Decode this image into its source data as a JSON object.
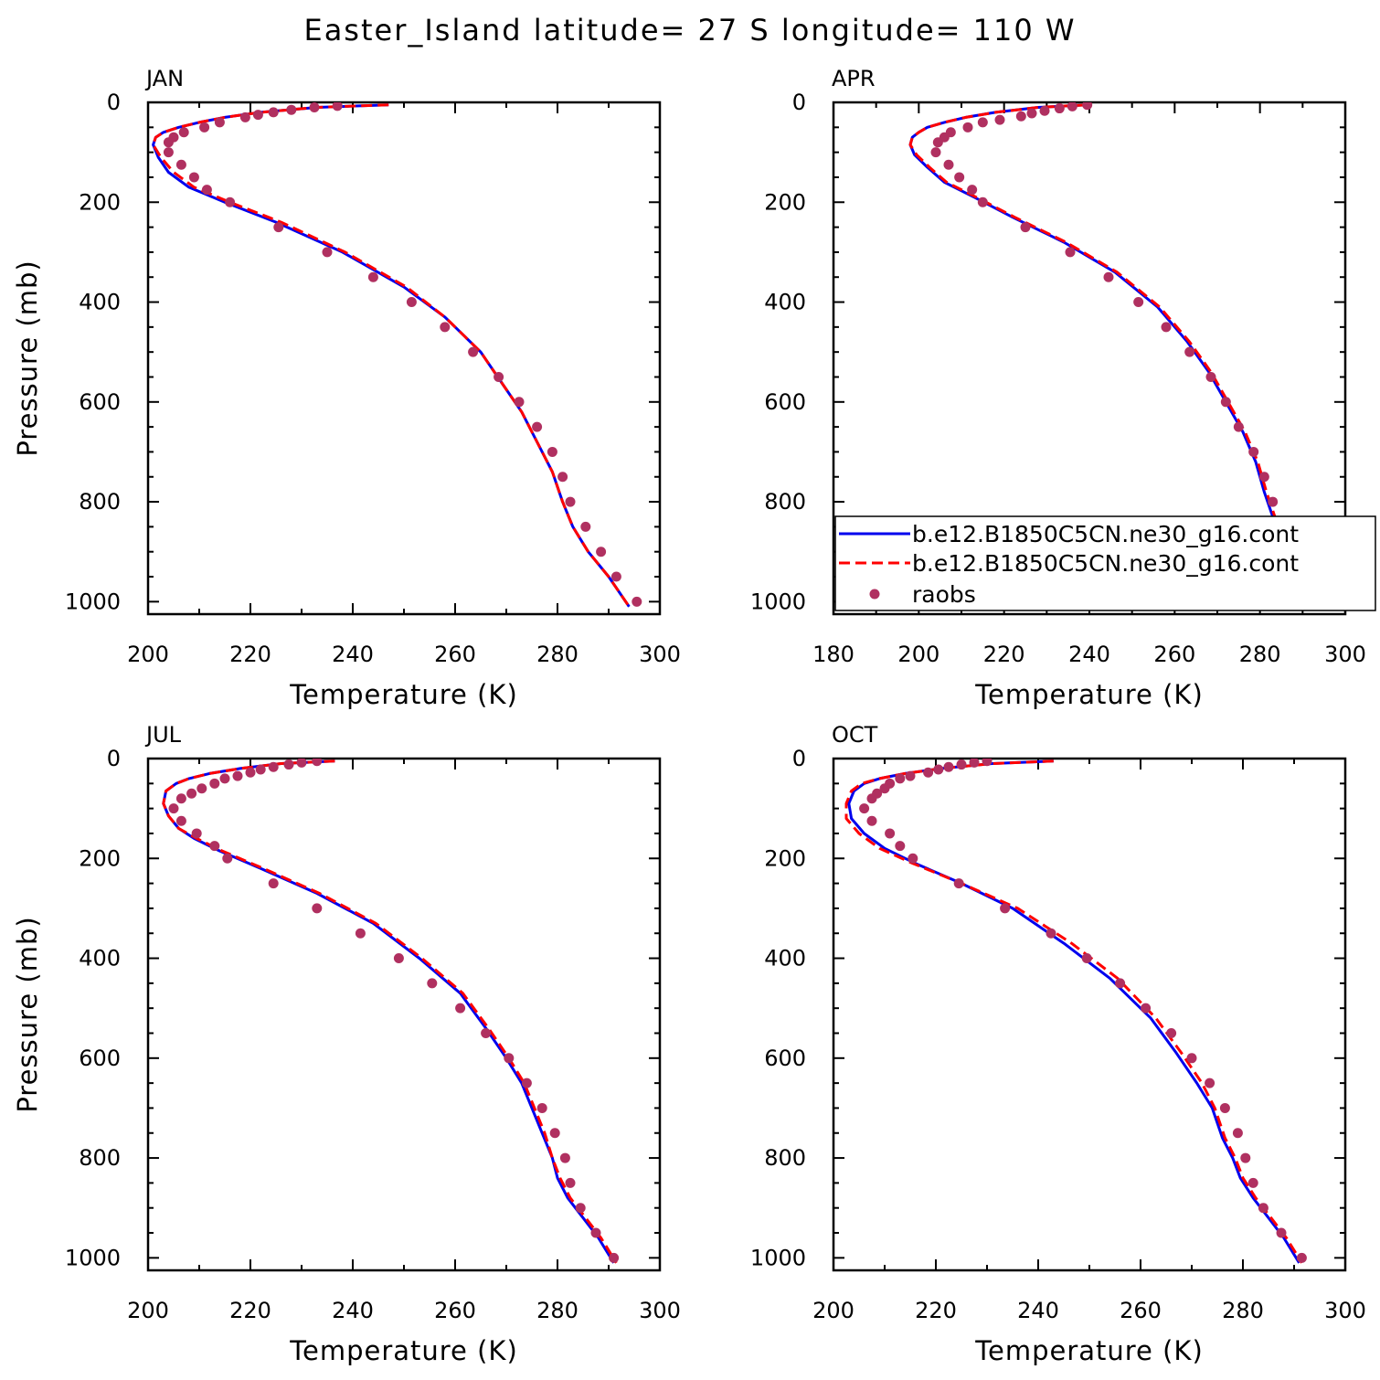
{
  "figure": {
    "title": "Easter_Island  latitude= 27 S longitude= 110 W"
  },
  "colors": {
    "model1": "#0000ee",
    "model2": "#ff0000",
    "obs": "#b03060",
    "axis": "#000000"
  },
  "legend": {
    "entries": [
      {
        "label": "b.e12.B1850C5CN.ne30_g16.cont",
        "style": "solid-line",
        "color": "#0000ee"
      },
      {
        "label": "b.e12.B1850C5CN.ne30_g16.cont",
        "style": "dashed-line",
        "color": "#ff0000"
      },
      {
        "label": "raobs",
        "style": "marker",
        "color": "#b03060"
      }
    ]
  },
  "chart_data": [
    {
      "type": "line",
      "title": "JAN",
      "xlabel": "Temperature (K)",
      "ylabel": "Pressure (mb)",
      "xlim": [
        200,
        300
      ],
      "ylim": [
        1025,
        0
      ],
      "xticks": [
        200,
        220,
        240,
        260,
        280,
        300
      ],
      "yticks": [
        0,
        200,
        400,
        600,
        800,
        1000
      ],
      "series": [
        {
          "style": "solid",
          "color": "#0000ee",
          "x": [
            247,
            233,
            222,
            215,
            210,
            206,
            203,
            201.5,
            201,
            202,
            204,
            208,
            215,
            225,
            238,
            250,
            258,
            265,
            269,
            273,
            276,
            279,
            281,
            283,
            286,
            290,
            294
          ],
          "y": [
            5,
            10,
            20,
            30,
            40,
            50,
            60,
            70,
            85,
            110,
            140,
            170,
            200,
            240,
            300,
            370,
            430,
            500,
            560,
            620,
            680,
            740,
            800,
            850,
            900,
            950,
            1010
          ]
        },
        {
          "style": "dashed",
          "color": "#ff0000",
          "x": [
            247,
            233,
            222,
            215,
            210,
            206,
            203,
            201.5,
            201,
            202.5,
            205,
            209,
            216,
            226,
            238.5,
            250.5,
            258,
            265,
            269,
            273,
            276,
            279,
            281,
            283,
            286,
            290,
            294
          ],
          "y": [
            5,
            10,
            20,
            30,
            40,
            50,
            60,
            70,
            85,
            110,
            140,
            170,
            200,
            240,
            300,
            370,
            430,
            500,
            560,
            620,
            680,
            740,
            800,
            850,
            900,
            950,
            1010
          ]
        },
        {
          "style": "marker",
          "color": "#b03060",
          "x": [
            237,
            232.5,
            228,
            224.5,
            221.5,
            219,
            214,
            211,
            207,
            205,
            204,
            204,
            206.5,
            209,
            211.5,
            216,
            225.5,
            235,
            244,
            251.5,
            258,
            263.5,
            268.5,
            272.5,
            276,
            279,
            281,
            282.5,
            285.5,
            288.5,
            291.5,
            295.5
          ],
          "y": [
            7,
            10,
            15,
            20,
            25,
            30,
            40,
            50,
            60,
            70,
            80,
            100,
            125,
            150,
            175,
            200,
            250,
            300,
            350,
            400,
            450,
            500,
            550,
            600,
            650,
            700,
            750,
            800,
            850,
            900,
            950,
            1000
          ]
        }
      ]
    },
    {
      "type": "line",
      "title": "APR",
      "xlabel": "Temperature (K)",
      "ylabel": "",
      "xlim": [
        180,
        300
      ],
      "ylim": [
        1025,
        0
      ],
      "xticks": [
        180,
        200,
        220,
        240,
        260,
        280,
        300
      ],
      "yticks": [
        0,
        200,
        400,
        600,
        800,
        1000
      ],
      "series": [
        {
          "style": "solid",
          "color": "#0000ee",
          "x": [
            239.5,
            228,
            218,
            211,
            206,
            202,
            200,
            198.5,
            198,
            199,
            202,
            206,
            213,
            222,
            234,
            246,
            256,
            263,
            268,
            272,
            276,
            279,
            281,
            283,
            285,
            288,
            291,
            295
          ],
          "y": [
            5,
            10,
            20,
            30,
            40,
            50,
            60,
            70,
            85,
            105,
            130,
            160,
            190,
            230,
            280,
            340,
            410,
            480,
            540,
            600,
            660,
            720,
            780,
            830,
            880,
            930,
            970,
            1010
          ]
        },
        {
          "style": "dashed",
          "color": "#ff0000",
          "x": [
            239.5,
            228,
            218,
            211,
            206,
            202,
            200,
            198.5,
            198,
            199.5,
            202.5,
            206.5,
            213.5,
            222.5,
            234.5,
            246.5,
            256.5,
            263.5,
            268.5,
            272.5,
            276.5,
            279.5,
            281.5,
            283.5,
            285.5,
            288.5,
            291.5,
            295.5
          ],
          "y": [
            5,
            10,
            20,
            30,
            40,
            50,
            60,
            70,
            85,
            105,
            130,
            160,
            190,
            230,
            280,
            340,
            410,
            480,
            540,
            600,
            660,
            720,
            780,
            830,
            880,
            930,
            970,
            1010
          ]
        },
        {
          "style": "marker",
          "color": "#b03060",
          "x": [
            239.5,
            236,
            233,
            229.5,
            226.5,
            224,
            219,
            215,
            211.5,
            207.5,
            206,
            204.5,
            204,
            207,
            209.5,
            212.5,
            215,
            225,
            235.5,
            244.5,
            251.5,
            258,
            263.5,
            268.5,
            272,
            275,
            278.5,
            281,
            283,
            285,
            288,
            291,
            295
          ],
          "y": [
            5,
            8,
            12,
            17,
            22,
            28,
            35,
            40,
            50,
            60,
            70,
            80,
            100,
            125,
            150,
            175,
            200,
            250,
            300,
            350,
            400,
            450,
            500,
            550,
            600,
            650,
            700,
            750,
            800,
            850,
            900,
            950,
            1000
          ]
        }
      ]
    },
    {
      "type": "line",
      "title": "JUL",
      "xlabel": "Temperature (K)",
      "ylabel": "Pressure (mb)",
      "xlim": [
        200,
        300
      ],
      "ylim": [
        1025,
        0
      ],
      "xticks": [
        200,
        220,
        240,
        260,
        280,
        300
      ],
      "yticks": [
        0,
        200,
        400,
        600,
        800,
        1000
      ],
      "series": [
        {
          "style": "solid",
          "color": "#0000ee",
          "x": [
            236.5,
            226,
            218,
            212,
            208,
            205.5,
            203.5,
            203,
            204,
            206,
            209,
            214,
            222,
            233,
            244,
            253,
            261,
            266,
            270,
            273,
            275,
            277,
            279,
            280,
            282,
            285,
            288,
            291
          ],
          "y": [
            5,
            10,
            20,
            30,
            40,
            50,
            65,
            90,
            115,
            140,
            160,
            185,
            220,
            270,
            330,
            400,
            470,
            540,
            600,
            650,
            700,
            750,
            800,
            840,
            880,
            920,
            960,
            1010
          ]
        },
        {
          "style": "dashed",
          "color": "#ff0000",
          "x": [
            236.5,
            226,
            218,
            212,
            208,
            205.5,
            203.5,
            203,
            204,
            206,
            209.5,
            214.5,
            222.5,
            233.5,
            244.5,
            253.5,
            261.5,
            266.5,
            270.5,
            273.5,
            275.5,
            277.5,
            279,
            280.5,
            282.5,
            285.5,
            288.5,
            291.5
          ],
          "y": [
            5,
            10,
            20,
            30,
            40,
            50,
            65,
            90,
            115,
            140,
            160,
            185,
            220,
            270,
            330,
            400,
            470,
            540,
            600,
            650,
            700,
            750,
            800,
            840,
            880,
            920,
            960,
            1010
          ]
        },
        {
          "style": "marker",
          "color": "#b03060",
          "x": [
            233,
            230,
            227.5,
            224.5,
            222,
            220,
            217.5,
            215,
            213,
            210.5,
            208.5,
            206.5,
            205,
            206.5,
            209.5,
            213,
            215.5,
            224.5,
            233,
            241.5,
            249,
            255.5,
            261,
            266,
            270.5,
            274,
            277,
            279.5,
            281.5,
            282.5,
            284.5,
            287.5,
            291
          ],
          "y": [
            5,
            8,
            12,
            17,
            22,
            28,
            35,
            40,
            50,
            60,
            70,
            80,
            100,
            125,
            150,
            175,
            200,
            250,
            300,
            350,
            400,
            450,
            500,
            550,
            600,
            650,
            700,
            750,
            800,
            850,
            900,
            950,
            1000
          ]
        }
      ]
    },
    {
      "type": "line",
      "title": "OCT",
      "xlabel": "Temperature (K)",
      "ylabel": "",
      "xlim": [
        200,
        300
      ],
      "ylim": [
        1025,
        0
      ],
      "xticks": [
        200,
        220,
        240,
        260,
        280,
        300
      ],
      "yticks": [
        0,
        200,
        400,
        600,
        800,
        1000
      ],
      "series": [
        {
          "style": "solid",
          "color": "#0000ee",
          "x": [
            243,
            231,
            221,
            214,
            209,
            206,
            204,
            203,
            203.5,
            206,
            210,
            216,
            225,
            235,
            245,
            254,
            262,
            267,
            271,
            274,
            276,
            278,
            279.5,
            282,
            285,
            288,
            291
          ],
          "y": [
            5,
            10,
            20,
            30,
            40,
            50,
            65,
            90,
            120,
            150,
            180,
            210,
            250,
            300,
            370,
            440,
            520,
            590,
            650,
            700,
            760,
            800,
            840,
            880,
            920,
            960,
            1010
          ]
        },
        {
          "style": "dashed",
          "color": "#ff0000",
          "x": [
            243,
            231,
            221,
            214,
            209,
            205.5,
            203.5,
            202.5,
            202.5,
            205,
            209,
            215.5,
            225,
            236,
            246.5,
            255.5,
            263,
            268,
            272,
            274.5,
            276.5,
            278.5,
            280,
            282.5,
            285.5,
            288.5,
            291.5
          ],
          "y": [
            5,
            10,
            20,
            30,
            40,
            50,
            65,
            90,
            120,
            150,
            180,
            210,
            250,
            300,
            370,
            440,
            520,
            590,
            650,
            700,
            760,
            800,
            840,
            880,
            920,
            960,
            1010
          ]
        },
        {
          "style": "marker",
          "color": "#b03060",
          "x": [
            230,
            227.5,
            225,
            222.5,
            220.5,
            218.5,
            215,
            213,
            211,
            210,
            208.5,
            207.5,
            206,
            207.5,
            211,
            213,
            215.5,
            224.5,
            233.5,
            242.5,
            249.5,
            256,
            261,
            266,
            270,
            273.5,
            276.5,
            279,
            280.5,
            282,
            284,
            287.5,
            291.5
          ],
          "y": [
            5,
            8,
            12,
            17,
            22,
            28,
            35,
            40,
            50,
            60,
            70,
            80,
            100,
            125,
            150,
            175,
            200,
            250,
            300,
            350,
            400,
            450,
            500,
            550,
            600,
            650,
            700,
            750,
            800,
            850,
            900,
            950,
            1000
          ]
        }
      ]
    }
  ]
}
